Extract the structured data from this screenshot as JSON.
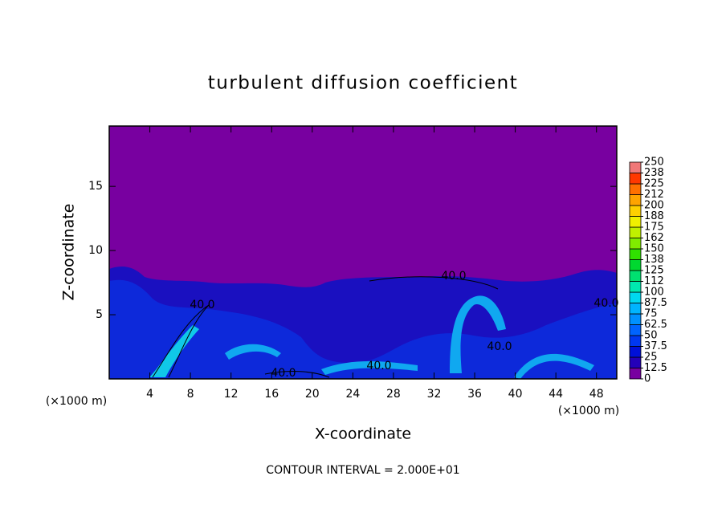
{
  "chart_data": {
    "type": "contour",
    "title": "turbulent diffusion coefficient",
    "x_label": "X-coordinate",
    "y_label": "Z-coordinate",
    "x_unit": "(×1000 m)",
    "y_unit": "(×1000 m)",
    "footer": "CONTOUR INTERVAL = 2.000E+01",
    "xlim": [
      0,
      50
    ],
    "ylim": [
      0,
      19.7
    ],
    "xticks": [
      4,
      8,
      12,
      16,
      20,
      24,
      28,
      32,
      36,
      40,
      44,
      48
    ],
    "yticks": [
      5,
      10,
      15
    ],
    "contour_labels": [
      "40.0",
      "40.0",
      "40.0",
      "40.0",
      "40.0",
      "40.0"
    ],
    "colorbar_ticks": [
      0,
      12.5,
      25,
      37.5,
      50,
      62.5,
      75,
      87.5,
      100,
      112,
      125,
      138,
      150,
      162,
      175,
      188,
      200,
      212,
      225,
      238,
      250
    ],
    "colorbar_colors": [
      "#7800a0",
      "#2400b8",
      "#0010d8",
      "#0038f0",
      "#0064ff",
      "#0090ff",
      "#00b4ff",
      "#00d8f0",
      "#00e8b0",
      "#00e070",
      "#00d830",
      "#30e000",
      "#80ec00",
      "#c0f000",
      "#f0f000",
      "#ffd000",
      "#ffa400",
      "#ff7000",
      "#ff3800",
      "#f07878"
    ]
  }
}
